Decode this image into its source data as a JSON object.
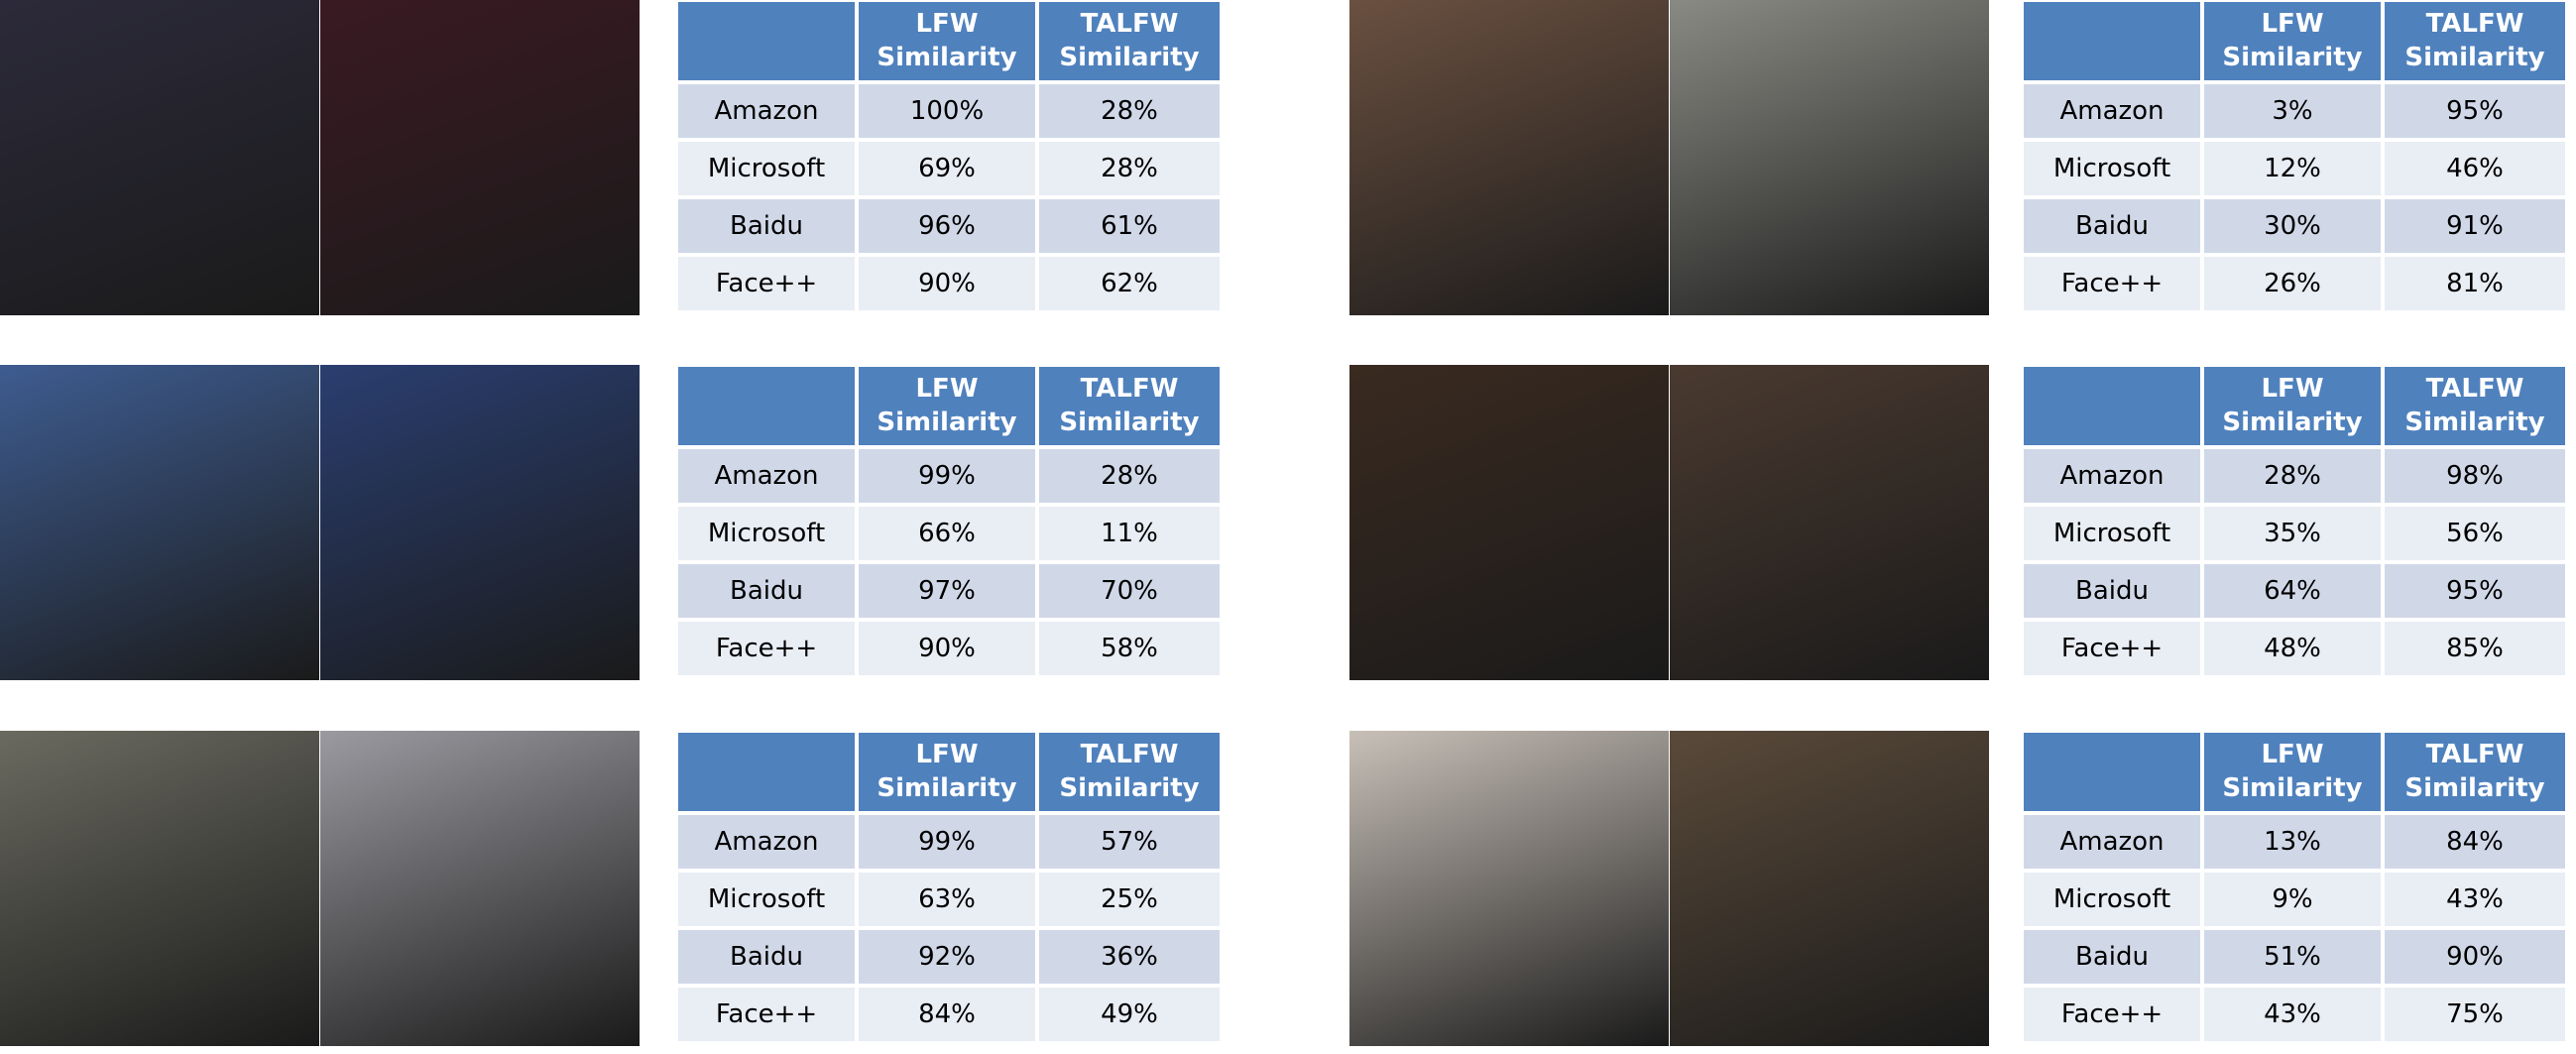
{
  "panels": [
    {
      "table": {
        "columns": [
          "LFW Similarity",
          "TALFW Similarity"
        ],
        "rows": [
          [
            "Amazon",
            "100%",
            "28%"
          ],
          [
            "Microsoft",
            "69%",
            "28%"
          ],
          [
            "Baidu",
            "96%",
            "61%"
          ],
          [
            "Face++",
            "90%",
            "62%"
          ]
        ]
      }
    },
    {
      "table": {
        "columns": [
          "LFW Similarity",
          "TALFW Similarity"
        ],
        "rows": [
          [
            "Amazon",
            "3%",
            "95%"
          ],
          [
            "Microsoft",
            "12%",
            "46%"
          ],
          [
            "Baidu",
            "30%",
            "91%"
          ],
          [
            "Face++",
            "26%",
            "81%"
          ]
        ]
      }
    },
    {
      "table": {
        "columns": [
          "LFW Similarity",
          "TALFW Similarity"
        ],
        "rows": [
          [
            "Amazon",
            "99%",
            "28%"
          ],
          [
            "Microsoft",
            "66%",
            "11%"
          ],
          [
            "Baidu",
            "97%",
            "70%"
          ],
          [
            "Face++",
            "90%",
            "58%"
          ]
        ]
      }
    },
    {
      "table": {
        "columns": [
          "LFW Similarity",
          "TALFW Similarity"
        ],
        "rows": [
          [
            "Amazon",
            "28%",
            "98%"
          ],
          [
            "Microsoft",
            "35%",
            "56%"
          ],
          [
            "Baidu",
            "64%",
            "95%"
          ],
          [
            "Face++",
            "48%",
            "85%"
          ]
        ]
      }
    },
    {
      "table": {
        "columns": [
          "LFW Similarity",
          "TALFW Similarity"
        ],
        "rows": [
          [
            "Amazon",
            "99%",
            "57%"
          ],
          [
            "Microsoft",
            "63%",
            "25%"
          ],
          [
            "Baidu",
            "92%",
            "36%"
          ],
          [
            "Face++",
            "84%",
            "49%"
          ]
        ]
      }
    },
    {
      "table": {
        "columns": [
          "LFW Similarity",
          "TALFW Similarity"
        ],
        "rows": [
          [
            "Amazon",
            "13%",
            "84%"
          ],
          [
            "Microsoft",
            "9%",
            "43%"
          ],
          [
            "Baidu",
            "51%",
            "90%"
          ],
          [
            "Face++",
            "43%",
            "75%"
          ]
        ]
      }
    }
  ]
}
